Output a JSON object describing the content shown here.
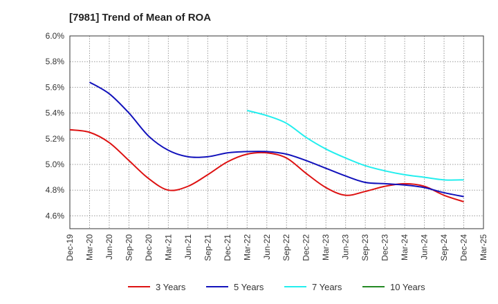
{
  "chart_data": {
    "type": "line",
    "title": "[7981]  Trend of Mean of ROA",
    "xlabel": "",
    "ylabel": "",
    "ylim": [
      4.5,
      6.0
    ],
    "yticks": [
      "6.0%",
      "5.8%",
      "5.6%",
      "5.4%",
      "5.2%",
      "5.0%",
      "4.8%",
      "4.6%"
    ],
    "ytick_values": [
      6.0,
      5.8,
      5.6,
      5.4,
      5.2,
      5.0,
      4.8,
      4.6
    ],
    "categories": [
      "Dec-19",
      "Mar-20",
      "Jun-20",
      "Sep-20",
      "Dec-20",
      "Mar-21",
      "Jun-21",
      "Sep-21",
      "Dec-21",
      "Mar-22",
      "Jun-22",
      "Sep-22",
      "Dec-22",
      "Mar-23",
      "Jun-23",
      "Sep-23",
      "Dec-23",
      "Mar-24",
      "Jun-24",
      "Sep-24",
      "Dec-24",
      "Mar-25"
    ],
    "grid": true,
    "legend_position": "bottom",
    "series": [
      {
        "name": "3 Years",
        "color": "#dd1111",
        "values": [
          5.27,
          5.25,
          5.17,
          5.03,
          4.89,
          4.8,
          4.83,
          4.92,
          5.02,
          5.08,
          5.09,
          5.05,
          4.93,
          4.82,
          4.76,
          4.79,
          4.83,
          4.85,
          4.83,
          4.76,
          4.71,
          null
        ]
      },
      {
        "name": "5 Years",
        "color": "#1111bb",
        "values": [
          null,
          5.64,
          5.55,
          5.4,
          5.22,
          5.11,
          5.06,
          5.06,
          5.09,
          5.1,
          5.1,
          5.08,
          5.03,
          4.97,
          4.91,
          4.86,
          4.85,
          4.84,
          4.82,
          4.78,
          4.75,
          null
        ]
      },
      {
        "name": "7 Years",
        "color": "#22eeee",
        "values": [
          null,
          null,
          null,
          null,
          null,
          null,
          null,
          null,
          null,
          5.42,
          5.38,
          5.32,
          5.21,
          5.12,
          5.05,
          4.99,
          4.95,
          4.92,
          4.9,
          4.88,
          4.88,
          null
        ]
      },
      {
        "name": "10 Years",
        "color": "#228822",
        "values": [
          null,
          null,
          null,
          null,
          null,
          null,
          null,
          null,
          null,
          null,
          null,
          null,
          null,
          null,
          null,
          null,
          null,
          null,
          null,
          null,
          null,
          null
        ]
      }
    ]
  }
}
